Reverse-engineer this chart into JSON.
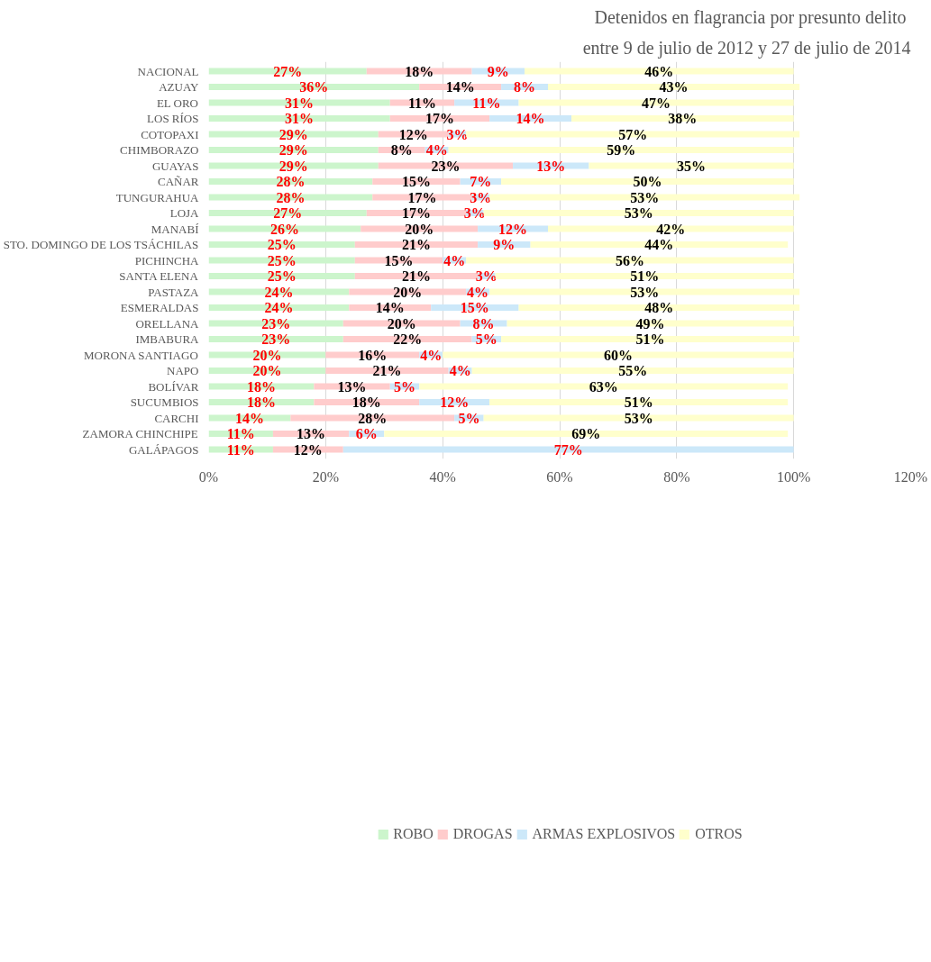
{
  "chart_data": {
    "type": "bar",
    "orientation": "horizontal",
    "stacked": true,
    "title": "Detenidos en flagrancia  por presunto delito",
    "subtitle": "entre 9 de julio de 2012 y 27 de julio de 2014",
    "categories": [
      "NACIONAL",
      "AZUAY",
      "EL ORO",
      "LOS RÍOS",
      "COTOPAXI",
      "CHIMBORAZO",
      "GUAYAS",
      "CAÑAR",
      "TUNGURAHUA",
      "LOJA",
      "MANABÍ",
      "STO. DOMINGO DE LOS TSÁCHILAS",
      "PICHINCHA",
      "SANTA ELENA",
      "PASTAZA",
      "ESMERALDAS",
      "ORELLANA",
      "IMBABURA",
      "MORONA SANTIAGO",
      "NAPO",
      "BOLÍVAR",
      "SUCUMBIOS",
      "CARCHI",
      "ZAMORA CHINCHIPE",
      "GALÁPAGOS"
    ],
    "series": [
      {
        "name": "ROBO",
        "color": "#ccf5cc",
        "values": [
          27,
          36,
          31,
          31,
          29,
          29,
          29,
          28,
          28,
          27,
          26,
          25,
          25,
          25,
          24,
          24,
          23,
          23,
          20,
          20,
          18,
          18,
          14,
          11,
          11
        ],
        "value_labels": [
          "27%",
          "36%",
          "31%",
          "31%",
          "29%",
          "29%",
          "29%",
          "28%",
          "28%",
          "27%",
          "26%",
          "25%",
          "25%",
          "25%",
          "24%",
          "24%",
          "23%",
          "23%",
          "20%",
          "20%",
          "18%",
          "18%",
          "14%",
          "11%",
          "11%"
        ]
      },
      {
        "name": "DROGAS",
        "color": "#ffcccc",
        "values": [
          18,
          14,
          11,
          17,
          12,
          8,
          23,
          15,
          17,
          17,
          20,
          21,
          15,
          21,
          20,
          14,
          20,
          22,
          16,
          21,
          13,
          18,
          28,
          13,
          12
        ],
        "value_labels": [
          "18%",
          "14%",
          "11%",
          "17%",
          "12%",
          "8%",
          "23%",
          "15%",
          "17%",
          "17%",
          "20%",
          "21%",
          "15%",
          "21%",
          "20%",
          "14%",
          "20%",
          "22%",
          "16%",
          "21%",
          "13%",
          "18%",
          "28%",
          "13%",
          "12%"
        ]
      },
      {
        "name": "ARMAS EXPLOSIVOS",
        "color": "#cce8f9",
        "values": [
          9,
          8,
          11,
          14,
          3,
          4,
          13,
          7,
          3,
          3,
          12,
          9,
          4,
          3,
          4,
          15,
          8,
          5,
          4,
          4,
          5,
          12,
          5,
          6,
          77
        ],
        "value_labels": [
          "9%",
          "8%",
          "11%",
          "14%",
          "3%",
          "4%",
          "13%",
          "7%",
          "3%",
          "3%",
          "12%",
          "9%",
          "4%",
          "3%",
          "4%",
          "15%",
          "8%",
          "5%",
          "4%",
          "4%",
          "5%",
          "12%",
          "5%",
          "6%",
          "77%"
        ]
      },
      {
        "name": "OTROS",
        "color": "#ffffcc",
        "values": [
          46,
          43,
          47,
          38,
          57,
          59,
          35,
          50,
          53,
          53,
          42,
          44,
          56,
          51,
          53,
          48,
          49,
          51,
          60,
          55,
          63,
          51,
          53,
          69,
          null
        ],
        "value_labels": [
          "46%",
          "43%",
          "47%",
          "38%",
          "57%",
          "59%",
          "35%",
          "50%",
          "53%",
          "53%",
          "42%",
          "44%",
          "56%",
          "51%",
          "53%",
          "48%",
          "49%",
          "51%",
          "60%",
          "55%",
          "63%",
          "51%",
          "53%",
          "69%",
          null
        ]
      }
    ],
    "xlim": [
      0,
      120
    ],
    "xticks": [
      {
        "value": 0,
        "label": "0%"
      },
      {
        "value": 20,
        "label": "20%"
      },
      {
        "value": 40,
        "label": "40%"
      },
      {
        "value": 60,
        "label": "60%"
      },
      {
        "value": 80,
        "label": "80%"
      },
      {
        "value": 100,
        "label": "100%"
      },
      {
        "value": 120,
        "label": "120%"
      }
    ],
    "grid": "x",
    "legend": "bottom"
  }
}
